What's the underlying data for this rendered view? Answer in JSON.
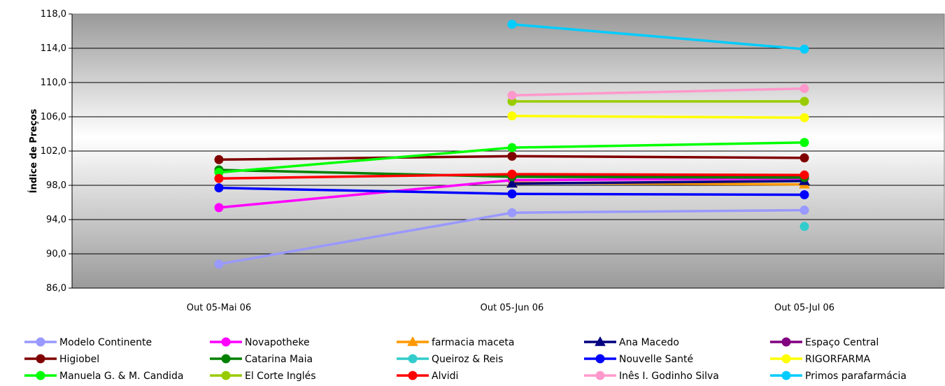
{
  "chart_data": {
    "type": "line",
    "ylabel": "Índice de Preços",
    "ylim": [
      86.0,
      118.0
    ],
    "yticks": [
      "86,0",
      "90,0",
      "94,0",
      "98,0",
      "102,0",
      "106,0",
      "110,0",
      "114,0",
      "118,0"
    ],
    "categories": [
      "Out 05-Mai 06",
      "Out 05-Jun 06",
      "Out 05-Jul 06"
    ],
    "legend_position": "bottom",
    "grid": true,
    "series": [
      {
        "name": "Modelo Continente",
        "color": "#9999FF",
        "marker": "circle",
        "values": [
          88.8,
          94.8,
          95.1
        ]
      },
      {
        "name": "Novapotheke",
        "color": "#FF00FF",
        "marker": "circle",
        "values": [
          95.4,
          98.6,
          98.8
        ]
      },
      {
        "name": "farmacia maceta",
        "color": "#FF9900",
        "marker": "triangle",
        "values": [
          null,
          98.3,
          98.1
        ]
      },
      {
        "name": "Ana Macedo",
        "color": "#000080",
        "marker": "triangle",
        "values": [
          null,
          98.2,
          98.5
        ]
      },
      {
        "name": "Espaço Central",
        "color": "#800080",
        "marker": "circle",
        "values": [
          null,
          99.1,
          99.0
        ]
      },
      {
        "name": "Higiobel",
        "color": "#800000",
        "marker": "circle",
        "values": [
          101.0,
          101.4,
          101.2
        ]
      },
      {
        "name": "Catarina Maia",
        "color": "#008000",
        "marker": "circle",
        "values": [
          99.8,
          99.0,
          98.9
        ]
      },
      {
        "name": "Queiroz & Reis",
        "color": "#33CCCC",
        "marker": "circle",
        "values": [
          null,
          null,
          93.2
        ]
      },
      {
        "name": "Nouvelle Santé",
        "color": "#0000FF",
        "marker": "circle",
        "values": [
          97.7,
          97.0,
          96.9
        ]
      },
      {
        "name": "RIGORFARMA",
        "color": "#FFFF00",
        "marker": "circle",
        "values": [
          null,
          106.1,
          105.9
        ]
      },
      {
        "name": "Manuela G. & M. Candida",
        "color": "#00FF00",
        "marker": "circle",
        "values": [
          99.5,
          102.4,
          103.0
        ]
      },
      {
        "name": "El Corte Inglés",
        "color": "#99CC00",
        "marker": "circle",
        "values": [
          null,
          107.8,
          107.8
        ]
      },
      {
        "name": "Alvidi",
        "color": "#FF0000",
        "marker": "circle",
        "values": [
          98.8,
          99.3,
          99.2
        ]
      },
      {
        "name": "Inês I. Godinho Silva",
        "color": "#FF99CC",
        "marker": "circle",
        "values": [
          null,
          108.5,
          109.3
        ]
      },
      {
        "name": "Primos parafarmácia",
        "color": "#00CCFF",
        "marker": "circle",
        "values": [
          null,
          116.8,
          113.9
        ]
      }
    ]
  }
}
